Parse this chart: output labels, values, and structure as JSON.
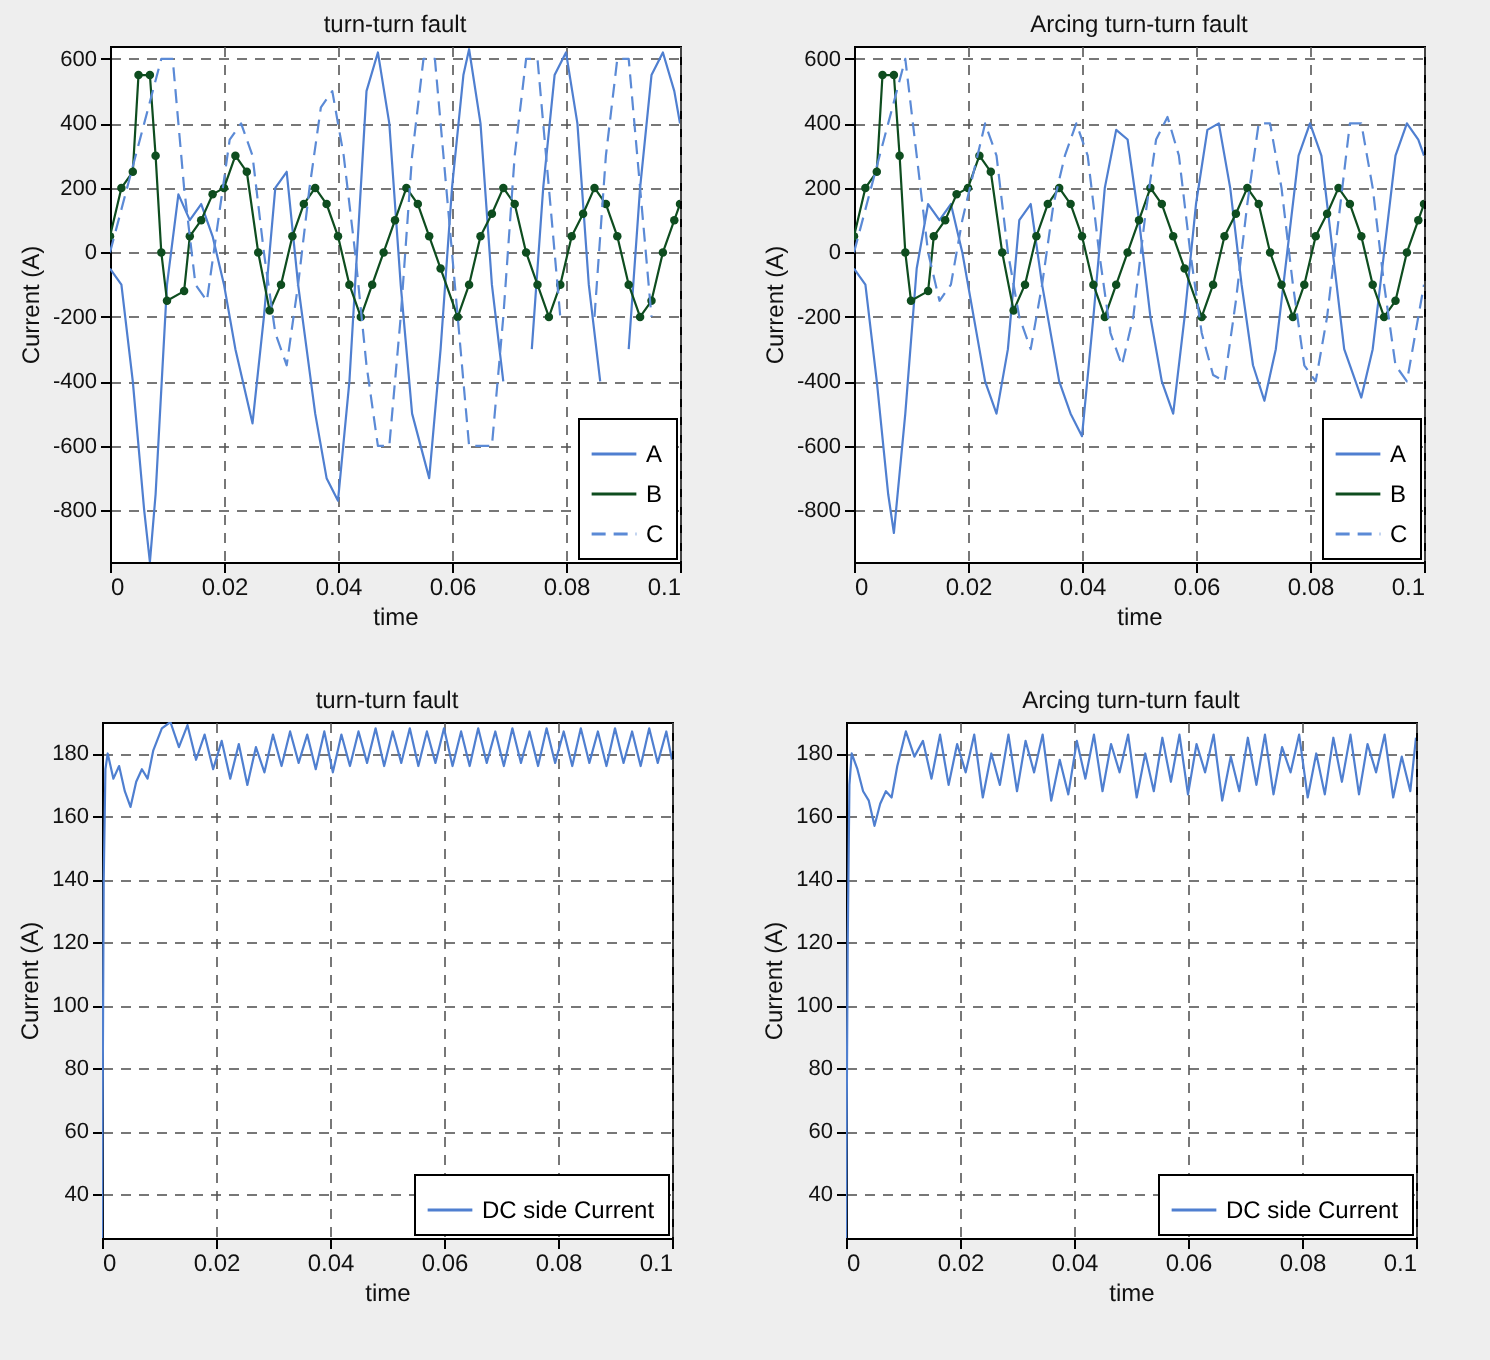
{
  "chart_data": [
    {
      "type": "line",
      "title": "turn-turn  fault",
      "xlabel": "time",
      "ylabel": "Current (A)",
      "xlim": [
        0,
        0.1
      ],
      "xticks": [
        0,
        0.02,
        0.04,
        0.06,
        0.08,
        0.1
      ],
      "ylim": [
        -960,
        640
      ],
      "yticks": [
        -800,
        -600,
        -400,
        -200,
        0,
        200,
        400,
        600
      ],
      "grid": true,
      "legend": "bottom right",
      "series": [
        {
          "name": "A",
          "color": "#4f7fd0",
          "line_style": "solid",
          "x": [
            0,
            0.002,
            0.004,
            0.006,
            0.007,
            0.008,
            0.01,
            0.012,
            0.014,
            0.016,
            0.018,
            0.02,
            0.022,
            0.025,
            0.027,
            0.029,
            0.031,
            0.033,
            0.036,
            0.038,
            0.04,
            0.042,
            0.044,
            0.045,
            0.047,
            0.049,
            0.051,
            0.053,
            0.056,
            0.058,
            0.06,
            0.062,
            0.063,
            0.065,
            0.067,
            0.069,
            0.072,
            0.074,
            0.076,
            0.078,
            0.08,
            0.082,
            0.084,
            0.086,
            0.089,
            0.091,
            0.093,
            0.095,
            0.097,
            0.099,
            0.1
          ],
          "values": [
            -50,
            -100,
            -400,
            -800,
            -960,
            -750,
            -100,
            180,
            100,
            150,
            50,
            -100,
            -300,
            -530,
            -200,
            200,
            250,
            -100,
            -500,
            -700,
            -770,
            -400,
            200,
            500,
            620,
            400,
            -100,
            -500,
            -700,
            -300,
            200,
            550,
            630,
            400,
            -100,
            -400,
            null,
            -300,
            200,
            550,
            620,
            400,
            -100,
            -400,
            null,
            -300,
            200,
            550,
            620,
            500,
            400
          ]
        },
        {
          "name": "B",
          "color": "#0e4d1f",
          "line_style": "solid",
          "marker": "circle",
          "x": [
            0,
            0.002,
            0.004,
            0.005,
            0.007,
            0.008,
            0.009,
            0.01,
            0.013,
            0.014,
            0.016,
            0.018,
            0.02,
            0.022,
            0.024,
            0.026,
            0.028,
            0.03,
            0.032,
            0.034,
            0.036,
            0.038,
            0.04,
            0.042,
            0.044,
            0.046,
            0.048,
            0.05,
            0.052,
            0.054,
            0.056,
            0.058,
            0.061,
            0.063,
            0.065,
            0.067,
            0.069,
            0.071,
            0.073,
            0.075,
            0.077,
            0.079,
            0.081,
            0.083,
            0.085,
            0.087,
            0.089,
            0.091,
            0.093,
            0.095,
            0.097,
            0.099,
            0.1
          ],
          "values": [
            50,
            200,
            250,
            550,
            550,
            300,
            0,
            -150,
            -120,
            50,
            100,
            180,
            200,
            300,
            250,
            0,
            -180,
            -100,
            50,
            150,
            200,
            150,
            50,
            -100,
            -200,
            -100,
            0,
            100,
            200,
            150,
            50,
            -50,
            -200,
            -100,
            50,
            120,
            200,
            150,
            0,
            -100,
            -200,
            -100,
            50,
            120,
            200,
            150,
            50,
            -100,
            -200,
            -150,
            0,
            100,
            150
          ]
        },
        {
          "name": "C",
          "color": "#5b8ad6",
          "line_style": "dashed",
          "x": [
            0,
            0.003,
            0.006,
            0.009,
            0.011,
            0.013,
            0.015,
            0.017,
            0.019,
            0.021,
            0.023,
            0.025,
            0.027,
            0.029,
            0.031,
            0.033,
            0.035,
            0.037,
            0.039,
            0.041,
            0.043,
            0.045,
            0.047,
            0.049,
            0.051,
            0.053,
            0.055,
            0.057,
            0.059,
            0.061,
            0.063,
            0.065,
            0.067,
            0.069,
            0.071,
            0.073,
            0.075,
            0.077,
            0.079,
            0.081,
            0.083,
            0.085,
            0.087,
            0.089,
            0.091,
            0.093,
            0.095
          ],
          "values": [
            0,
            200,
            400,
            600,
            600,
            200,
            -100,
            -150,
            100,
            350,
            400,
            300,
            0,
            -250,
            -350,
            -100,
            200,
            450,
            500,
            300,
            0,
            -350,
            -600,
            -600,
            -200,
            300,
            600,
            600,
            200,
            -200,
            -600,
            -600,
            -600,
            -200,
            300,
            600,
            600,
            200,
            -200,
            null,
            null,
            -200,
            300,
            600,
            600,
            200,
            -200
          ]
        }
      ]
    },
    {
      "type": "line",
      "title": "Arcing turn-turn fault",
      "xlabel": "time",
      "ylabel": "Current (A)",
      "xlim": [
        0,
        0.1
      ],
      "xticks": [
        0,
        0.02,
        0.04,
        0.06,
        0.08,
        0.1
      ],
      "ylim": [
        -960,
        640
      ],
      "yticks": [
        -800,
        -600,
        -400,
        -200,
        0,
        200,
        400,
        600
      ],
      "grid": true,
      "legend": "bottom right",
      "series": [
        {
          "name": "A",
          "color": "#4f7fd0",
          "line_style": "solid",
          "x": [
            0,
            0.002,
            0.004,
            0.006,
            0.007,
            0.009,
            0.011,
            0.013,
            0.015,
            0.017,
            0.019,
            0.021,
            0.023,
            0.025,
            0.027,
            0.029,
            0.031,
            0.033,
            0.036,
            0.038,
            0.04,
            0.042,
            0.044,
            0.046,
            0.048,
            0.05,
            0.052,
            0.054,
            0.056,
            0.058,
            0.06,
            0.062,
            0.064,
            0.066,
            0.068,
            0.07,
            0.072,
            0.074,
            0.076,
            0.078,
            0.08,
            0.082,
            0.084,
            0.086,
            0.089,
            0.091,
            0.093,
            0.095,
            0.097,
            0.099,
            0.1
          ],
          "values": [
            -50,
            -100,
            -400,
            -750,
            -870,
            -500,
            -50,
            150,
            100,
            150,
            0,
            -200,
            -400,
            -500,
            -300,
            100,
            150,
            -100,
            -400,
            -500,
            -570,
            -200,
            200,
            380,
            350,
            100,
            -200,
            -400,
            -500,
            -200,
            150,
            380,
            400,
            200,
            -100,
            -350,
            -460,
            -300,
            0,
            300,
            400,
            300,
            0,
            -300,
            -450,
            -300,
            0,
            300,
            400,
            350,
            300
          ]
        },
        {
          "name": "B",
          "color": "#0e4d1f",
          "line_style": "solid",
          "marker": "circle",
          "x": [
            0,
            0.002,
            0.004,
            0.005,
            0.007,
            0.008,
            0.009,
            0.01,
            0.013,
            0.014,
            0.016,
            0.018,
            0.02,
            0.022,
            0.024,
            0.026,
            0.028,
            0.03,
            0.032,
            0.034,
            0.036,
            0.038,
            0.04,
            0.042,
            0.044,
            0.046,
            0.048,
            0.05,
            0.052,
            0.054,
            0.056,
            0.058,
            0.061,
            0.063,
            0.065,
            0.067,
            0.069,
            0.071,
            0.073,
            0.075,
            0.077,
            0.079,
            0.081,
            0.083,
            0.085,
            0.087,
            0.089,
            0.091,
            0.093,
            0.095,
            0.097,
            0.099,
            0.1
          ],
          "values": [
            50,
            200,
            250,
            550,
            550,
            300,
            0,
            -150,
            -120,
            50,
            100,
            180,
            200,
            300,
            250,
            0,
            -180,
            -100,
            50,
            150,
            200,
            150,
            50,
            -100,
            -200,
            -100,
            0,
            100,
            200,
            150,
            50,
            -50,
            -200,
            -100,
            50,
            120,
            200,
            150,
            0,
            -100,
            -200,
            -100,
            50,
            120,
            200,
            150,
            50,
            -100,
            -200,
            -150,
            0,
            100,
            150
          ]
        },
        {
          "name": "C",
          "color": "#5b8ad6",
          "line_style": "dashed",
          "x": [
            0,
            0.003,
            0.006,
            0.009,
            0.011,
            0.013,
            0.015,
            0.017,
            0.019,
            0.021,
            0.023,
            0.025,
            0.027,
            0.029,
            0.031,
            0.033,
            0.035,
            0.037,
            0.039,
            0.041,
            0.043,
            0.045,
            0.047,
            0.049,
            0.051,
            0.053,
            0.055,
            0.057,
            0.059,
            0.061,
            0.063,
            0.065,
            0.067,
            0.069,
            0.071,
            0.073,
            0.075,
            0.077,
            0.079,
            0.081,
            0.083,
            0.085,
            0.087,
            0.089,
            0.091,
            0.093,
            0.095,
            0.097,
            0.099,
            0.1
          ],
          "values": [
            0,
            200,
            400,
            600,
            300,
            0,
            -150,
            -100,
            100,
            250,
            400,
            300,
            0,
            -200,
            -300,
            -100,
            150,
            300,
            400,
            300,
            0,
            -250,
            -350,
            -200,
            100,
            350,
            420,
            300,
            0,
            -250,
            -380,
            -400,
            -150,
            150,
            400,
            400,
            200,
            -100,
            -350,
            -400,
            -200,
            100,
            400,
            400,
            200,
            -100,
            -350,
            -400,
            -200,
            -100
          ]
        }
      ]
    },
    {
      "type": "line",
      "title": "turn-turn  fault",
      "xlabel": "time",
      "ylabel": "Current (A)",
      "xlim": [
        0,
        0.1
      ],
      "xticks": [
        0,
        0.02,
        0.04,
        0.06,
        0.08,
        0.1
      ],
      "ylim": [
        26,
        190
      ],
      "yticks": [
        40,
        60,
        80,
        100,
        120,
        140,
        160,
        180
      ],
      "grid": true,
      "legend": "bottom right",
      "x": [
        0,
        0.0003,
        0.0006,
        0.001,
        0.002,
        0.003,
        0.004,
        0.005,
        0.006,
        0.007,
        0.008,
        0.009,
        0.0105,
        0.012,
        0.0135,
        0.015,
        0.0165,
        0.018,
        0.0195,
        0.021,
        0.0225,
        0.024,
        0.0255,
        0.027,
        0.0285,
        0.03,
        0.0315,
        0.033,
        0.0345,
        0.036,
        0.0375,
        0.039,
        0.0405,
        0.042,
        0.0435,
        0.045,
        0.0465,
        0.048,
        0.0495,
        0.051,
        0.0525,
        0.054,
        0.0555,
        0.057,
        0.0585,
        0.06,
        0.0615,
        0.063,
        0.0645,
        0.066,
        0.0675,
        0.069,
        0.0705,
        0.072,
        0.0735,
        0.075,
        0.0765,
        0.078,
        0.0795,
        0.081,
        0.0825,
        0.084,
        0.0855,
        0.087,
        0.0885,
        0.09,
        0.0915,
        0.093,
        0.0945,
        0.096,
        0.0975,
        0.099,
        0.1
      ],
      "series": [
        {
          "name": "DC side Current",
          "color": "#4f7fd0",
          "line_style": "solid",
          "values": [
            26,
            140,
            175,
            180,
            172,
            176,
            168,
            163,
            171,
            175,
            172,
            181,
            188,
            190,
            182,
            189,
            178,
            186,
            175,
            184,
            172,
            183,
            170,
            182,
            174,
            186,
            176,
            187,
            177,
            186,
            175,
            187,
            174,
            186,
            176,
            187,
            177,
            188,
            176,
            187,
            177,
            188,
            176,
            187,
            177,
            188,
            176,
            187,
            176,
            188,
            177,
            187,
            176,
            188,
            177,
            187,
            176,
            188,
            177,
            187,
            176,
            188,
            177,
            187,
            176,
            188,
            177,
            187,
            176,
            188,
            177,
            187,
            178
          ]
        }
      ]
    },
    {
      "type": "line",
      "title": "Arcing turn-turn fault",
      "xlabel": "time",
      "ylabel": "Current (A)",
      "xlim": [
        0,
        0.1
      ],
      "xticks": [
        0,
        0.02,
        0.04,
        0.06,
        0.08,
        0.1
      ],
      "ylim": [
        26,
        190
      ],
      "yticks": [
        40,
        60,
        80,
        100,
        120,
        140,
        160,
        180
      ],
      "grid": true,
      "legend": "bottom right",
      "x": [
        0,
        0.0003,
        0.0006,
        0.001,
        0.002,
        0.003,
        0.004,
        0.005,
        0.006,
        0.007,
        0.008,
        0.009,
        0.0105,
        0.012,
        0.0135,
        0.015,
        0.0165,
        0.018,
        0.0195,
        0.021,
        0.0225,
        0.024,
        0.0255,
        0.027,
        0.0285,
        0.03,
        0.0315,
        0.033,
        0.0345,
        0.036,
        0.0375,
        0.039,
        0.0405,
        0.042,
        0.0435,
        0.045,
        0.0465,
        0.048,
        0.0495,
        0.051,
        0.0525,
        0.054,
        0.0555,
        0.057,
        0.0585,
        0.06,
        0.0615,
        0.063,
        0.0645,
        0.066,
        0.0675,
        0.069,
        0.0705,
        0.072,
        0.0735,
        0.075,
        0.0765,
        0.078,
        0.0795,
        0.081,
        0.0825,
        0.084,
        0.0855,
        0.087,
        0.0885,
        0.09,
        0.0915,
        0.093,
        0.0945,
        0.096,
        0.0975,
        0.099,
        0.1
      ],
      "series": [
        {
          "name": "DC side Current",
          "color": "#4f7fd0",
          "line_style": "solid",
          "values": [
            26,
            120,
            170,
            180,
            175,
            168,
            165,
            157,
            164,
            168,
            166,
            176,
            187,
            179,
            184,
            172,
            186,
            170,
            183,
            174,
            186,
            166,
            180,
            170,
            186,
            168,
            184,
            174,
            186,
            165,
            178,
            167,
            184,
            172,
            186,
            168,
            183,
            174,
            186,
            166,
            180,
            168,
            185,
            171,
            186,
            167,
            183,
            174,
            186,
            165,
            179,
            168,
            185,
            170,
            186,
            167,
            182,
            174,
            186,
            166,
            180,
            167,
            185,
            171,
            186,
            167,
            183,
            174,
            186,
            166,
            179,
            168,
            185
          ]
        }
      ]
    }
  ]
}
